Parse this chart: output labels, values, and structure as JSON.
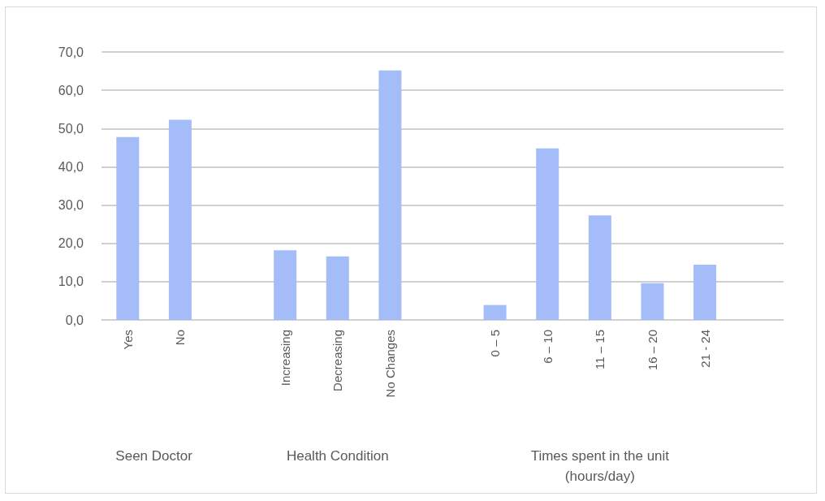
{
  "chart_data": {
    "type": "bar",
    "categories": [
      "Yes",
      "No",
      null,
      "Increasing",
      "Decreasing",
      "No Changes",
      null,
      "0 – 5",
      "6 – 10",
      "11 – 15",
      "16 – 20",
      "21 - 24",
      null
    ],
    "values": [
      47.8,
      52.3,
      null,
      18.2,
      16.6,
      65.2,
      null,
      3.9,
      44.8,
      27.3,
      9.6,
      14.4,
      null
    ],
    "color": "#a4bcf8",
    "ylim": [
      0,
      70
    ],
    "yticks": [
      {
        "value": 0,
        "label": "0,0"
      },
      {
        "value": 10,
        "label": "10,0"
      },
      {
        "value": 20,
        "label": "20,0"
      },
      {
        "value": 30,
        "label": "30,0"
      },
      {
        "value": 40,
        "label": "40,0"
      },
      {
        "value": 50,
        "label": "50,0"
      },
      {
        "value": 60,
        "label": "60,0"
      },
      {
        "value": 70,
        "label": "70,0"
      }
    ],
    "grid": "y",
    "annotations": [
      "Seen Doctor",
      "Health Condition",
      "Times spent in the unit\n(hours/day)"
    ]
  }
}
